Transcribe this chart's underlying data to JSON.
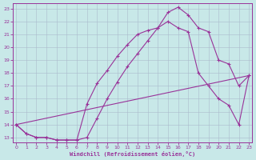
{
  "bg_color": "#c8e8e8",
  "line_color": "#993399",
  "xlim": [
    0,
    23
  ],
  "ylim": [
    13,
    23
  ],
  "yticks": [
    13,
    14,
    15,
    16,
    17,
    18,
    19,
    20,
    21,
    22,
    23
  ],
  "xticks": [
    0,
    1,
    2,
    3,
    4,
    5,
    6,
    7,
    8,
    9,
    10,
    11,
    12,
    13,
    14,
    15,
    16,
    17,
    18,
    19,
    20,
    21,
    22,
    23
  ],
  "curve1_x": [
    0,
    1,
    2,
    3,
    4,
    5,
    6,
    7,
    8,
    9,
    10,
    11,
    12,
    13,
    14,
    15,
    16,
    17,
    18,
    19,
    20,
    21,
    22,
    23
  ],
  "curve1_y": [
    14,
    13.3,
    13.0,
    13.0,
    12.8,
    12.8,
    12.8,
    13.0,
    14.5,
    16.0,
    17.3,
    18.5,
    19.5,
    20.5,
    21.5,
    22.7,
    23.1,
    22.5,
    21.5,
    21.2,
    19.0,
    18.7,
    17.0,
    17.8
  ],
  "curve2_x": [
    0,
    1,
    2,
    3,
    4,
    5,
    6,
    7,
    8,
    9,
    10,
    11,
    12,
    13,
    14,
    15,
    16,
    17,
    18,
    19,
    20,
    21,
    22,
    23
  ],
  "curve2_y": [
    14,
    13.3,
    13.0,
    13.0,
    12.8,
    12.8,
    12.8,
    15.6,
    17.2,
    18.2,
    19.3,
    20.2,
    21.0,
    21.3,
    21.5,
    22.0,
    21.5,
    21.2,
    18.0,
    17.0,
    16.0,
    15.5,
    14.0,
    17.8
  ],
  "line3_x": [
    0,
    23
  ],
  "line3_y": [
    14.0,
    17.8
  ],
  "xlabel": "Windchill (Refroidissement éolien,°C)",
  "grid_color": "#aabbcc"
}
